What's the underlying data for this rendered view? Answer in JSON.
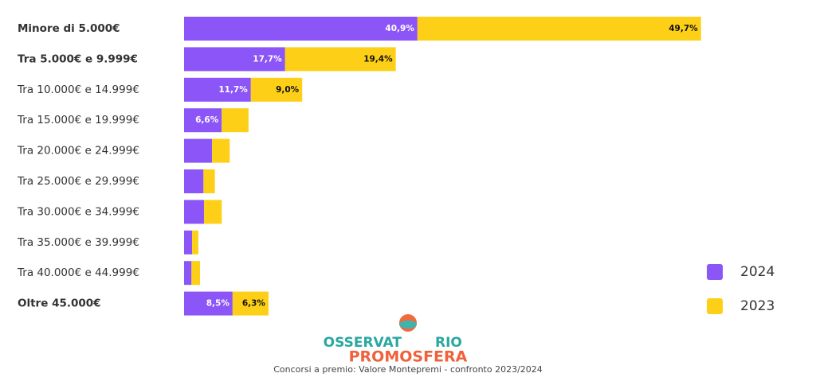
{
  "chart_data": {
    "type": "stacked-bar-horizontal",
    "caption": "Concorsi a premio: Valore Montepremi - confronto 2023/2024",
    "logo": {
      "top_left": "OSSERVAT",
      "top_right": "RIO",
      "bottom": "PROMOSFERA"
    },
    "categories": [
      "Minore di 5.000€",
      "Tra 5.000€ e 9.999€",
      "Tra 10.000€ e 14.999€",
      "Tra 15.000€ e 19.999€",
      "Tra 20.000€ e 24.999€",
      "Tra 25.000€ e 29.999€",
      "Tra 30.000€ e 34.999€",
      "Tra 35.000€ e 39.999€",
      "Tra 40.000€ e 44.999€",
      "Oltre 45.000€"
    ],
    "bold_categories": [
      0,
      1,
      9
    ],
    "legend": "right",
    "series": [
      {
        "name": "2024",
        "color": "#8b55f7",
        "label_color": "#ffffff",
        "values": [
          40.9,
          17.7,
          11.7,
          6.6,
          4.9,
          3.4,
          3.5,
          1.4,
          1.3,
          8.5
        ],
        "value_labels": [
          "40,9%",
          "17,7%",
          "11,7%",
          "6,6%",
          null,
          null,
          null,
          null,
          null,
          "8,5%"
        ]
      },
      {
        "name": "2023",
        "color": "#fdd017",
        "label_color": "#111111",
        "values": [
          49.7,
          19.4,
          9.0,
          4.7,
          3.1,
          2.0,
          3.1,
          1.1,
          1.5,
          6.3
        ],
        "value_labels": [
          "49,7%",
          "19,4%",
          "9,0%",
          null,
          null,
          null,
          null,
          null,
          null,
          "6,3%"
        ]
      }
    ]
  }
}
